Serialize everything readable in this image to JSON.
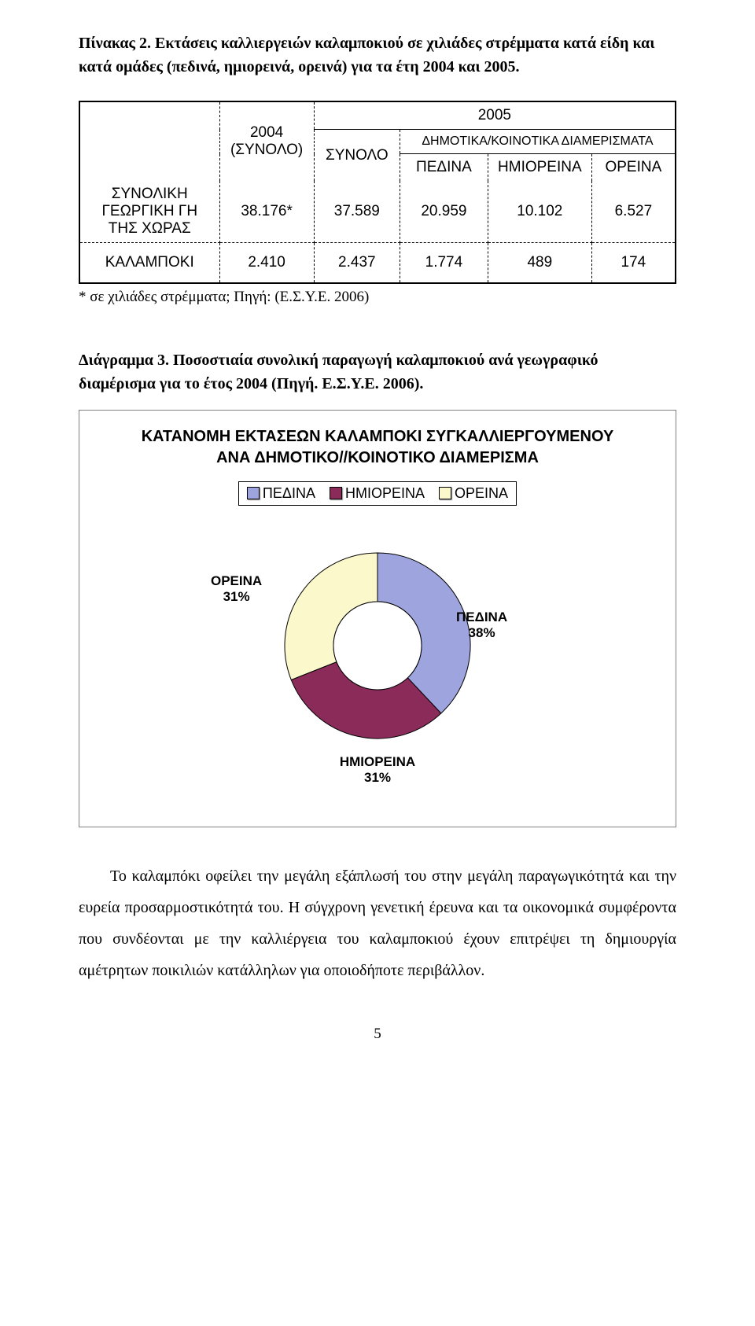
{
  "tableCaption": {
    "lead": "Πίνακας 2.",
    "rest": " Εκτάσεις καλλιεργειών καλαμποκιού σε χιλιάδες στρέμματα κατά είδη και κατά ομάδες (πεδινά, ημιορεινά, ορεινά) για τα έτη 2004 και 2005."
  },
  "table": {
    "header": {
      "y2004_total": "2004\n(ΣΥΝΟΛΟ)",
      "y2005": "2005",
      "synolo": "ΣΥΝΟΛΟ",
      "dimotika": "ΔΗΜΟΤΙΚΑ/ΚΟΙΝΟΤΙΚΑ ΔΙΑΜΕΡΙΣΜΑΤΑ",
      "pedina": "ΠΕΔΙΝΑ",
      "hmioreina": "ΗΜΙΟΡΕΙΝΑ",
      "oreina": "ΟΡΕΙΝΑ"
    },
    "rows": [
      {
        "label": "ΣΥΝΟΛΙΚΗ ΓΕΩΡΓΙΚΗ ΓΗ\nΤΗΣ ΧΩΡΑΣ",
        "c2004": "38.176*",
        "synolo": "37.589",
        "pedina": "20.959",
        "hmi": "10.102",
        "ore": "6.527"
      },
      {
        "label": "ΚΑΛΑΜΠΟΚΙ",
        "c2004": "2.410",
        "synolo": "2.437",
        "pedina": "1.774",
        "hmi": "489",
        "ore": "174"
      }
    ],
    "footnote": "* σε χιλιάδες στρέμματα; Πηγή: (Ε.Σ.Υ.Ε. 2006)"
  },
  "figure": {
    "lead": "Διάγραμμα 3.",
    "rest": " Ποσοστιαία συνολική παραγωγή καλαμποκιού ανά γεωγραφικό διαμέρισμα για το έτος 2004 (Πηγή. Ε.Σ.Υ.Ε. 2006).",
    "chartTitle1": "ΚΑΤΑΝΟΜΗ ΕΚΤΑΣΕΩΝ ΚΑΛΑΜΠΟΚΙ ΣΥΓΚΑΛΛΙΕΡΓΟΥΜΕΝΟΥ",
    "chartTitle2": "ΑΝΑ ΔΗΜΟΤΙΚΟ//ΚΟΙΝΟΤΙΚΟ ΔΙΑΜΕΡΙΣΜΑ",
    "legend": {
      "pedina": "ΠΕΔΙΝΑ",
      "hmi": "ΗΜΙΟΡΕΙΝΑ",
      "ore": "ΟΡΕΙΝΑ",
      "color_pedina": "#9ea4de",
      "color_hmi": "#8b2b5a",
      "color_ore": "#fbf9cc"
    },
    "slices": {
      "pedina": {
        "label": "ΠΕΔΙΝΑ",
        "pct": "38%",
        "value": 38
      },
      "hmi": {
        "label": "ΗΜΙΟΡΕΙΝΑ",
        "pct": "31%",
        "value": 31
      },
      "ore": {
        "label": "ΟΡΕΙΝΑ",
        "pct": "31%",
        "value": 31
      }
    },
    "donut": {
      "outer_radius": 118,
      "inner_radius": 56,
      "stroke": "#000000",
      "stroke_width": 1,
      "background": "#ffffff"
    }
  },
  "bodyText": "Το καλαμπόκι οφείλει την μεγάλη εξάπλωσή του στην μεγάλη παραγωγικότητά και την ευρεία προσαρμοστικότητά του. Η σύγχρονη γενετική έρευνα και τα οικονομικά συμφέροντα που συνδέονται με την καλλιέργεια του καλαμποκιού έχουν επιτρέψει τη δημιουργία αμέτρητων ποικιλιών κατάλληλων για οποιοδήποτε περιβάλλον.",
  "pageNumber": "5"
}
